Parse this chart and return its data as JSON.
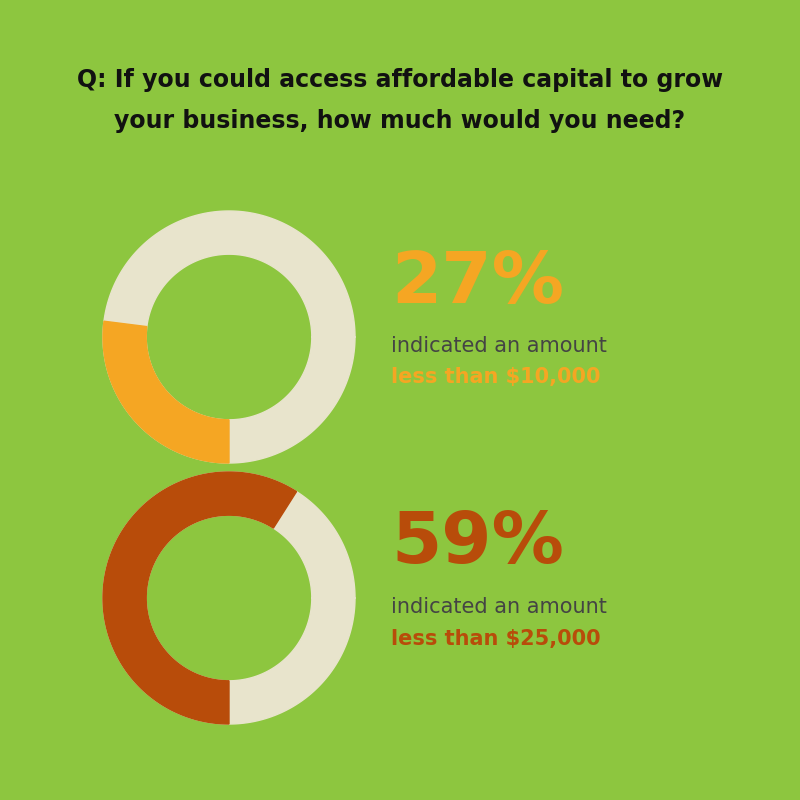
{
  "title_line1": "Q: If you could access affordable capital to grow",
  "title_line2": "your business, how much would you need?",
  "title_bg_color": "#8dc63f",
  "title_text_color": "#111111",
  "white_bg_color": "#ffffff",
  "outer_bg_color": "#8dc63f",
  "chart1": {
    "pct": 27,
    "pct_label": "27%",
    "pct_color": "#f5a623",
    "ring_active_color": "#f5a623",
    "ring_bg_color": "#e8e4cc",
    "text1": "indicated an amount",
    "text1_color": "#444444",
    "text2": "less than $10,000",
    "text2_color": "#f5a623"
  },
  "chart2": {
    "pct": 59,
    "pct_label": "59%",
    "pct_color": "#b84c0a",
    "ring_active_color": "#b84c0a",
    "ring_bg_color": "#e8e4cc",
    "text1": "indicated an amount",
    "text1_color": "#444444",
    "text2": "less than $25,000",
    "text2_color": "#b84c0a"
  },
  "fig_width": 8.0,
  "fig_height": 8.0,
  "dpi": 100
}
